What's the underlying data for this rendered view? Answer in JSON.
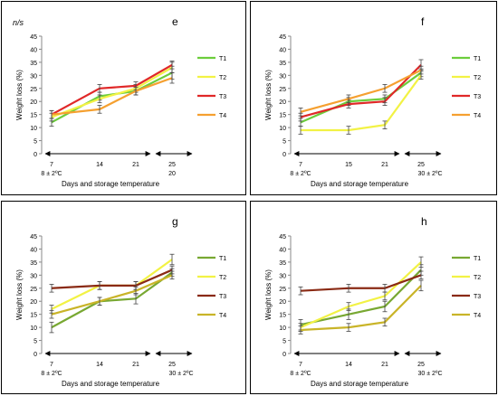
{
  "chart_data": [
    {
      "type": "line",
      "panel_label": "e",
      "corner_note": "n/s",
      "ylabel": "Weight loss (%)",
      "xlabel": "Days and storage temperature",
      "ylim": [
        0,
        45
      ],
      "yticks": [
        0,
        5,
        10,
        15,
        20,
        25,
        30,
        35,
        40,
        45
      ],
      "categories": [
        "7",
        "14",
        "21",
        "25"
      ],
      "temperatures": [
        "8 ± 2ºC",
        "20"
      ],
      "legend_position": "right",
      "series": [
        {
          "name": "T1",
          "color": "#6ccd3c",
          "values": [
            12,
            22,
            24,
            31
          ],
          "errors": [
            1.5,
            1.5,
            1.5,
            2.5
          ]
        },
        {
          "name": "T2",
          "color": "#f2f244",
          "values": [
            14,
            21,
            25,
            33
          ],
          "errors": [
            1.5,
            1.5,
            1.5,
            2
          ]
        },
        {
          "name": "T3",
          "color": "#e02828",
          "values": [
            15,
            25,
            26,
            34
          ],
          "errors": [
            1.5,
            1.5,
            1.5,
            1.5
          ]
        },
        {
          "name": "T4",
          "color": "#f5a030",
          "values": [
            15,
            17,
            24,
            29
          ],
          "errors": [
            1.5,
            1.5,
            1.5,
            2
          ]
        }
      ]
    },
    {
      "type": "line",
      "panel_label": "f",
      "ylabel": "Weight loss (%)",
      "xlabel": "Days and storage temperature",
      "ylim": [
        0,
        45
      ],
      "yticks": [
        0,
        5,
        10,
        15,
        20,
        25,
        30,
        35,
        40,
        45
      ],
      "categories": [
        "7",
        "15",
        "21",
        "25"
      ],
      "temperatures": [
        "8 ± 2ºC",
        "30 ± 2ºC"
      ],
      "legend_position": "right",
      "series": [
        {
          "name": "T1",
          "color": "#6ccd3c",
          "values": [
            12,
            20,
            21,
            31
          ],
          "errors": [
            1.5,
            1.5,
            1.5,
            1.5
          ]
        },
        {
          "name": "T2",
          "color": "#f2f244",
          "values": [
            9,
            9,
            11,
            30
          ],
          "errors": [
            1.5,
            1.5,
            1.5,
            1.5
          ]
        },
        {
          "name": "T3",
          "color": "#e02828",
          "values": [
            14,
            19,
            20,
            34
          ],
          "errors": [
            1.5,
            1.5,
            1.5,
            2
          ]
        },
        {
          "name": "T4",
          "color": "#f5a030",
          "values": [
            16,
            21,
            25,
            32
          ],
          "errors": [
            1.5,
            1.5,
            1.5,
            1.5
          ]
        }
      ]
    },
    {
      "type": "line",
      "panel_label": "g",
      "ylabel": "Weight loss (%)",
      "xlabel": "Days and storage temperature",
      "ylim": [
        0,
        45
      ],
      "yticks": [
        0,
        5,
        10,
        15,
        20,
        25,
        30,
        35,
        40,
        45
      ],
      "categories": [
        "7",
        "14",
        "21",
        "25"
      ],
      "temperatures": [
        "8 ± 2ºC",
        "30 ± 2ºC"
      ],
      "legend_position": "right",
      "series": [
        {
          "name": "T1",
          "color": "#78a832",
          "values": [
            10,
            20,
            21,
            31
          ],
          "errors": [
            2,
            1.5,
            2,
            1.5
          ]
        },
        {
          "name": "T2",
          "color": "#f2f244",
          "values": [
            17,
            26,
            26,
            36
          ],
          "errors": [
            1.5,
            1.5,
            1.5,
            2
          ]
        },
        {
          "name": "T3",
          "color": "#8a2a14",
          "values": [
            25,
            26,
            26,
            32
          ],
          "errors": [
            1.5,
            1.5,
            1.5,
            1.5
          ]
        },
        {
          "name": "T4",
          "color": "#c9b428",
          "values": [
            15,
            20,
            24,
            30
          ],
          "errors": [
            1.5,
            1.5,
            1.5,
            1.5
          ]
        }
      ]
    },
    {
      "type": "line",
      "panel_label": "h",
      "ylabel": "Weight loss (%)",
      "xlabel": "Days and storage temperature",
      "ylim": [
        0,
        45
      ],
      "yticks": [
        0,
        5,
        10,
        15,
        20,
        25,
        30,
        35,
        40,
        45
      ],
      "categories": [
        "7",
        "14",
        "21",
        "25"
      ],
      "temperatures": [
        "8 ± 2ºC",
        "30 ± 2ºC"
      ],
      "legend_position": "right",
      "series": [
        {
          "name": "T1",
          "color": "#78a832",
          "values": [
            11,
            15,
            18,
            32
          ],
          "errors": [
            2,
            2,
            2,
            2
          ]
        },
        {
          "name": "T2",
          "color": "#f2f244",
          "values": [
            10,
            18,
            22,
            35
          ],
          "errors": [
            1.5,
            1.5,
            1.5,
            2
          ]
        },
        {
          "name": "T3",
          "color": "#8a2a14",
          "values": [
            24,
            25,
            25,
            30
          ],
          "errors": [
            1.5,
            1.5,
            1.5,
            1.5
          ]
        },
        {
          "name": "T4",
          "color": "#c9b428",
          "values": [
            9,
            10,
            12,
            26
          ],
          "errors": [
            1.5,
            1.5,
            1.5,
            2
          ]
        }
      ]
    }
  ]
}
